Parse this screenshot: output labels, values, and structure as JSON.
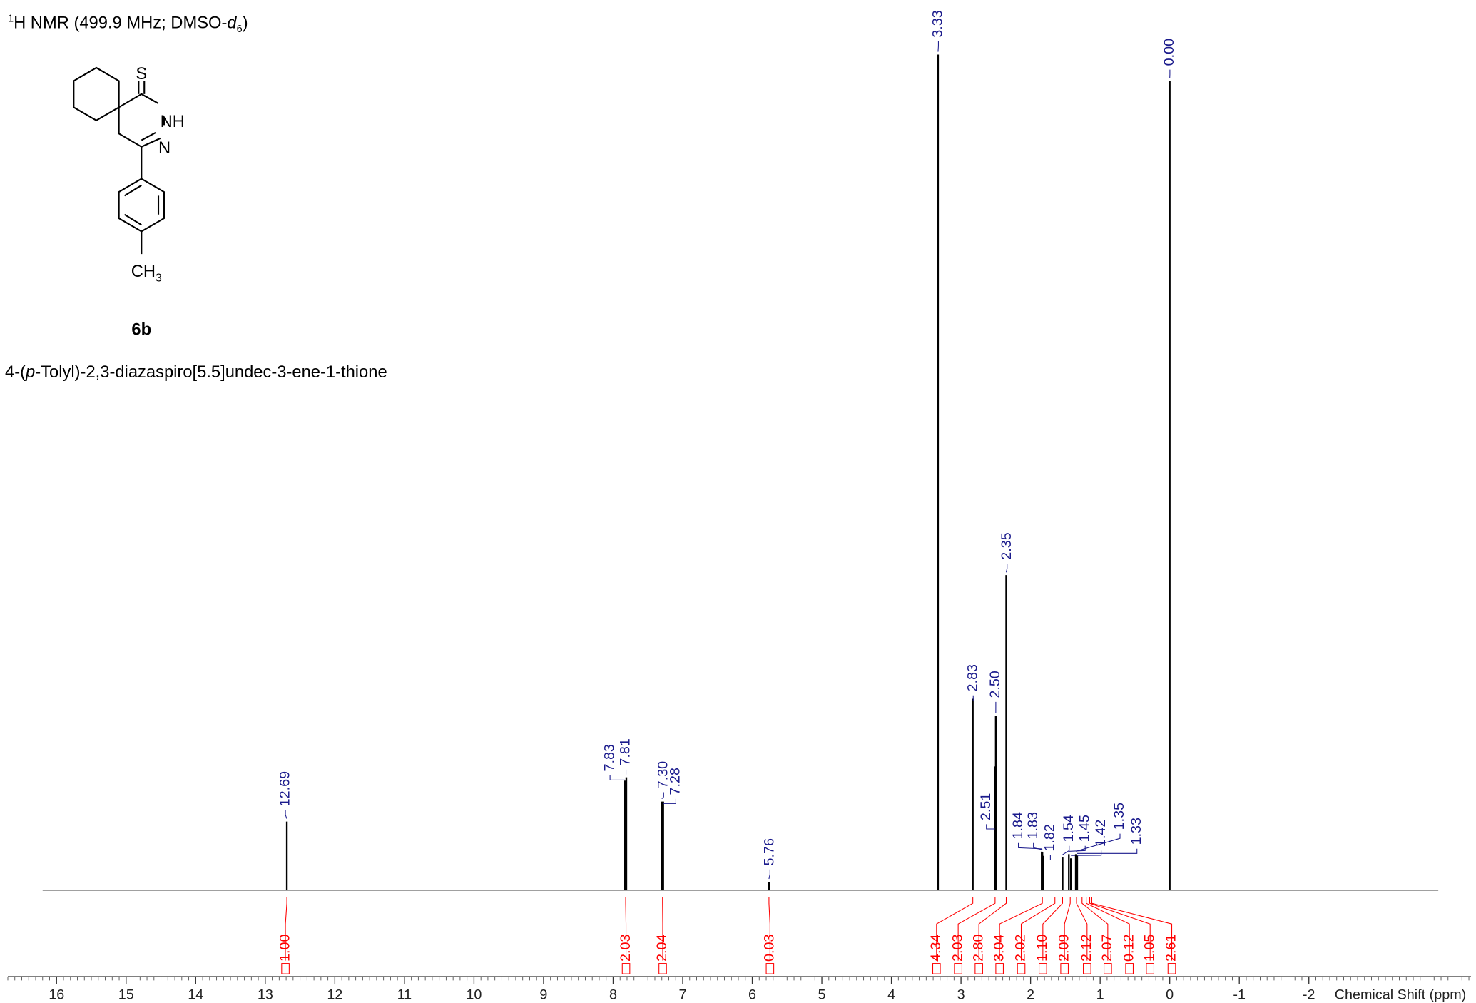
{
  "chart_data": {
    "type": "nmr",
    "title_parts": [
      "1",
      "H NMR (499.9 MHz; DMSO-",
      "d",
      "6",
      ")"
    ],
    "xlabel": "Chemical Shift (ppm)",
    "xlim": [
      16.7,
      -4.33
    ],
    "xticks": [
      16,
      15,
      14,
      13,
      12,
      11,
      10,
      9,
      8,
      7,
      6,
      5,
      4,
      3,
      2,
      1,
      0,
      -1,
      -2
    ],
    "xminor_step": 0.1,
    "ylim": [
      0,
      100
    ],
    "baseline_range": [
      16.2,
      -3.86
    ],
    "color": "#000000",
    "label_color": "#1a1a8c",
    "integral_color": "#ff0000",
    "peaks": {
      "x": [
        12.69,
        7.83,
        7.81,
        7.3,
        7.28,
        5.76,
        3.33,
        2.83,
        2.51,
        2.5,
        2.35,
        1.84,
        1.83,
        1.82,
        1.54,
        1.45,
        1.42,
        1.35,
        1.33,
        0.0
      ],
      "labels": [
        "12.69",
        "7.83",
        "7.81",
        "7.30",
        "7.28",
        "5.76",
        "3.33",
        "2.83",
        "2.51",
        "2.50",
        "2.35",
        "1.84",
        "1.83",
        "1.82",
        "1.54",
        "1.45",
        "1.42",
        "1.35",
        "1.33",
        "0.00"
      ],
      "values": [
        8.2,
        13.1,
        13.5,
        10.6,
        10.6,
        1.0,
        100,
        22.9,
        14.8,
        20.9,
        37.7,
        4.6,
        4.5,
        4.1,
        3.9,
        4.3,
        3.8,
        4.3,
        4.1,
        96.8
      ]
    },
    "integrals": {
      "x": [
        12.69,
        7.82,
        7.29,
        5.76,
        2.83,
        2.51,
        2.35,
        1.83,
        1.65,
        1.54,
        1.43,
        1.34,
        1.26,
        1.2,
        1.15,
        1.12
      ],
      "values": [
        1.0,
        2.03,
        2.04,
        0.03,
        4.34,
        2.03,
        2.8,
        3.04,
        2.02,
        1.1,
        2.09,
        2.12,
        2.07,
        0.12,
        1.05,
        2.61
      ],
      "labels": [
        "1.00",
        "2.03",
        "2.04",
        "0.03",
        "4.34",
        "2.03",
        "2.80",
        "3.04",
        "2.02",
        "1.10",
        "2.09",
        "2.12",
        "2.07",
        "0.12",
        "1.05",
        "2.61"
      ]
    }
  },
  "structure": {
    "atoms": [
      "S",
      "NH",
      "N",
      "CH",
      "3"
    ],
    "compound": "6b",
    "name_parts": [
      "4-(",
      "p",
      "-Tolyl)-2,3-diazaspiro[5.5]undec-3-ene-1-thione"
    ]
  }
}
